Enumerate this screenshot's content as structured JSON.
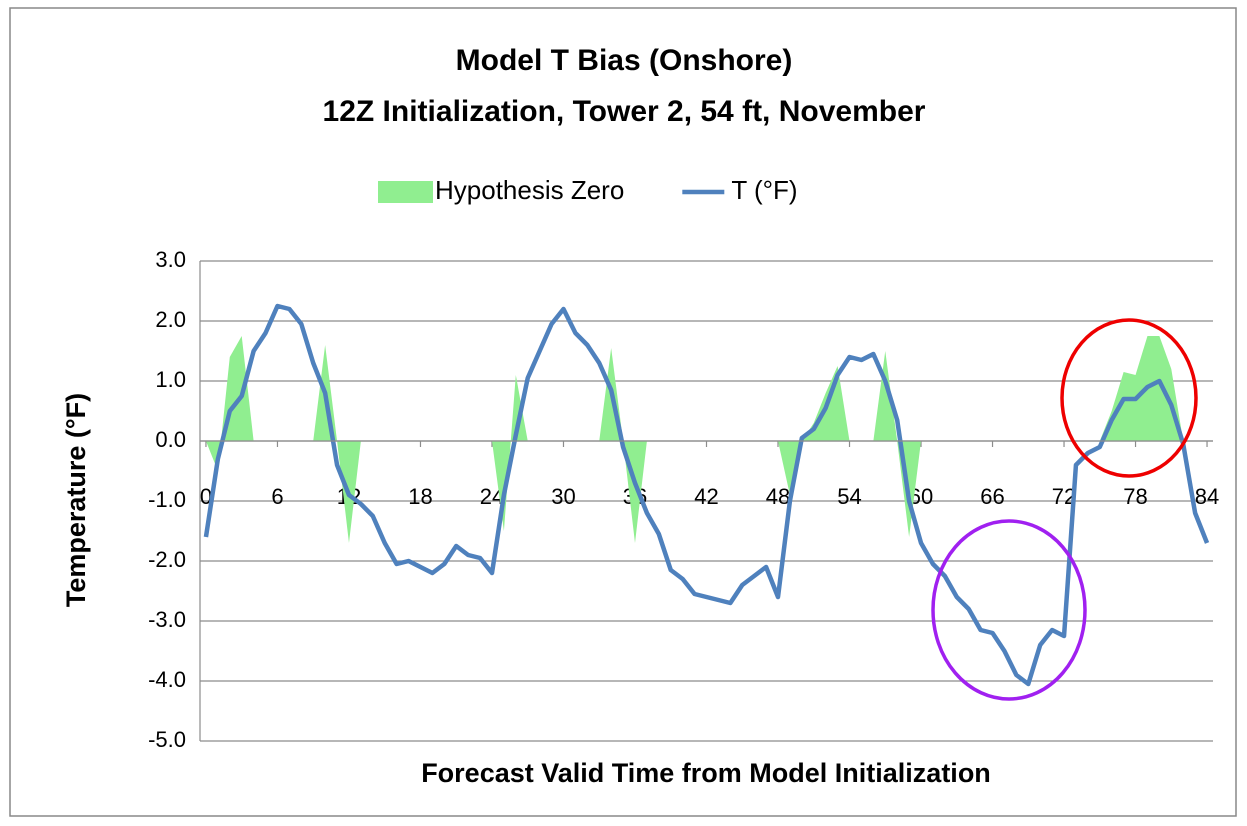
{
  "chart_data": {
    "type": "line",
    "title": "Model T Bias (Onshore)",
    "subtitle": "12Z Initialization,  Tower 2, 54 ft, November",
    "xlabel": "Forecast Valid Time from  Model Initialization",
    "ylabel": "Temperature (°F)",
    "x": [
      0,
      1,
      2,
      3,
      4,
      5,
      6,
      7,
      8,
      9,
      10,
      11,
      12,
      13,
      14,
      15,
      16,
      17,
      18,
      19,
      20,
      21,
      22,
      23,
      24,
      25,
      26,
      27,
      28,
      29,
      30,
      31,
      32,
      33,
      34,
      35,
      36,
      37,
      38,
      39,
      40,
      41,
      42,
      43,
      44,
      45,
      46,
      47,
      48,
      49,
      50,
      51,
      52,
      53,
      54,
      55,
      56,
      57,
      58,
      59,
      60,
      61,
      62,
      63,
      64,
      65,
      66,
      67,
      68,
      69,
      70,
      71,
      72,
      73,
      74,
      75,
      76,
      77,
      78,
      79,
      80,
      81,
      82,
      83,
      84
    ],
    "xlim": [
      -0.5,
      84.5
    ],
    "xticks": [
      0,
      6,
      12,
      18,
      24,
      30,
      36,
      42,
      48,
      54,
      60,
      66,
      72,
      78,
      84
    ],
    "ylim": [
      -5,
      3
    ],
    "yticks": [
      {
        "value": 3,
        "label": "3.0"
      },
      {
        "value": 2,
        "label": "2.0"
      },
      {
        "value": 1,
        "label": "1.0"
      },
      {
        "value": 0,
        "label": "0.0"
      },
      {
        "value": -1,
        "label": "-1.0"
      },
      {
        "value": -2,
        "label": "-2.0"
      },
      {
        "value": -3,
        "label": "-3.0"
      },
      {
        "value": -4,
        "label": "-4.0"
      },
      {
        "value": -5,
        "label": "-5.0"
      }
    ],
    "grid": true,
    "legend": "top",
    "series": [
      {
        "name": "Hypothesis Zero",
        "type": "area",
        "color": "#90ee90",
        "values": [
          0,
          -0.5,
          1.4,
          1.75,
          0,
          0,
          0,
          0,
          0,
          0,
          1.6,
          0,
          -1.7,
          0,
          0,
          0,
          0,
          0,
          0,
          0,
          0,
          0,
          0,
          0,
          0,
          -1.5,
          1.1,
          0,
          0,
          0,
          0,
          0,
          0,
          0,
          1.55,
          0,
          -1.7,
          0,
          0,
          0,
          0,
          0,
          0,
          0,
          0,
          0,
          0,
          0,
          0,
          -0.9,
          0,
          0.3,
          0.8,
          1.25,
          0,
          0,
          0,
          1.5,
          0,
          -1.6,
          0,
          0,
          0,
          0,
          0,
          0,
          0,
          0,
          0,
          0,
          0,
          0,
          0,
          0,
          0,
          0,
          0.5,
          1.15,
          1.1,
          1.75,
          1.75,
          1.2,
          0,
          0,
          0
        ]
      },
      {
        "name": "T (°F)",
        "type": "line",
        "color": "#4f81bd",
        "values": [
          -1.6,
          -0.3,
          0.5,
          0.75,
          1.5,
          1.8,
          2.25,
          2.2,
          1.95,
          1.3,
          0.8,
          -0.4,
          -0.9,
          -1.05,
          -1.25,
          -1.7,
          -2.05,
          -2.0,
          -2.1,
          -2.2,
          -2.05,
          -1.75,
          -1.9,
          -1.95,
          -2.2,
          -0.9,
          0.1,
          1.05,
          1.5,
          1.95,
          2.2,
          1.8,
          1.6,
          1.3,
          0.85,
          -0.1,
          -0.7,
          -1.2,
          -1.55,
          -2.15,
          -2.3,
          -2.55,
          -2.6,
          -2.65,
          -2.7,
          -2.4,
          -2.25,
          -2.1,
          -2.6,
          -1.0,
          0.05,
          0.2,
          0.55,
          1.1,
          1.4,
          1.35,
          1.45,
          1.0,
          0.35,
          -1.0,
          -1.7,
          -2.05,
          -2.25,
          -2.6,
          -2.8,
          -3.15,
          -3.2,
          -3.5,
          -3.9,
          -4.05,
          -3.4,
          -3.15,
          -3.25,
          -0.4,
          -0.2,
          -0.1,
          0.35,
          0.7,
          0.7,
          0.9,
          1.0,
          0.6,
          -0.05,
          -1.2,
          -1.7
        ]
      }
    ]
  }
}
